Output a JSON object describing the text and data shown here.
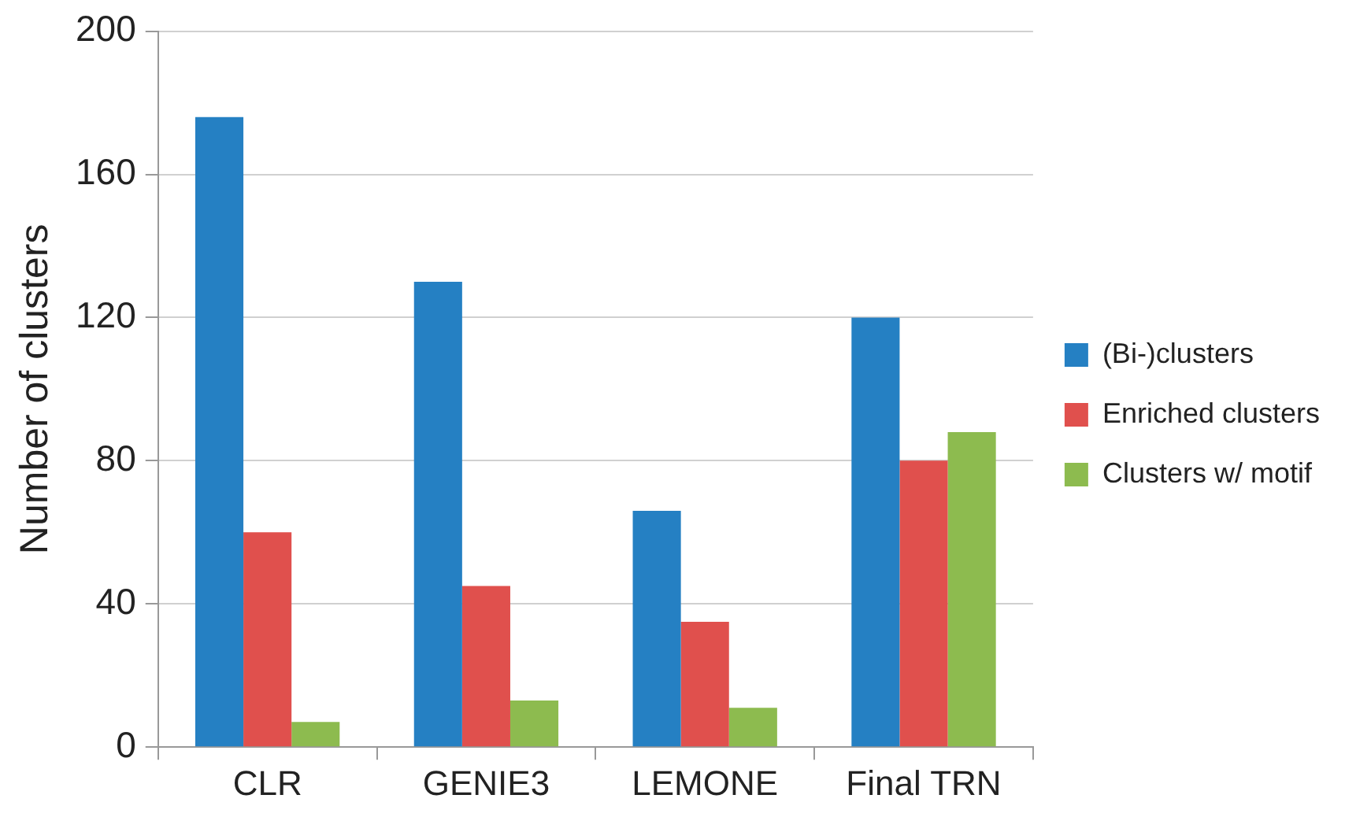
{
  "chart_data": {
    "type": "bar",
    "ylabel": "Number of clusters",
    "categories": [
      "CLR",
      "GENIE3",
      "LEMONE",
      "Final TRN"
    ],
    "series": [
      {
        "name": "(Bi-)clusters",
        "color": "#2580c3",
        "values": [
          176,
          130,
          66,
          120
        ]
      },
      {
        "name": "Enriched clusters",
        "color": "#e0504d",
        "values": [
          60,
          45,
          35,
          80
        ]
      },
      {
        "name": "Clusters w/ motif",
        "color": "#8dbb4f",
        "values": [
          7,
          13,
          11,
          88
        ]
      }
    ],
    "ylim": [
      0,
      200
    ],
    "yticks": [
      0,
      40,
      80,
      120,
      160,
      200
    ],
    "grid": "y",
    "legend": "right"
  }
}
